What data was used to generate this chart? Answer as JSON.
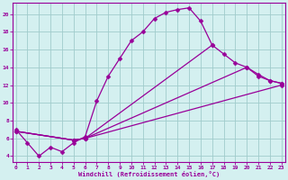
{
  "bg_color": "#d4f0f0",
  "grid_color": "#a0cccc",
  "line_color": "#990099",
  "xlabel": "Windchill (Refroidissement éolien,°C)",
  "x_ticks": [
    0,
    1,
    2,
    3,
    4,
    5,
    6,
    7,
    8,
    9,
    10,
    11,
    12,
    13,
    14,
    15,
    16,
    17,
    18,
    19,
    20,
    21,
    22,
    23
  ],
  "y_ticks": [
    4,
    6,
    8,
    10,
    12,
    14,
    16,
    18,
    20
  ],
  "xlim": [
    -0.3,
    23.3
  ],
  "ylim": [
    3.3,
    21.3
  ],
  "curve1_x": [
    0,
    1,
    2,
    3,
    4,
    5,
    6,
    7,
    8,
    9,
    10,
    11,
    12,
    13,
    14,
    15,
    16,
    17
  ],
  "curve1_y": [
    7.0,
    5.5,
    4.0,
    5.0,
    4.5,
    5.5,
    6.2,
    10.2,
    13.0,
    15.0,
    17.0,
    18.0,
    19.5,
    20.2,
    20.5,
    20.7,
    19.2,
    16.5
  ],
  "curve2_x": [
    0,
    5,
    6,
    17,
    18,
    19,
    20,
    21,
    22,
    23
  ],
  "curve2_y": [
    6.8,
    5.8,
    6.0,
    16.5,
    15.5,
    14.5,
    14.0,
    13.2,
    12.5,
    12.2
  ],
  "curve3_x": [
    0,
    5,
    6,
    20,
    21,
    22,
    23
  ],
  "curve3_y": [
    6.8,
    5.8,
    6.0,
    14.0,
    13.0,
    12.5,
    12.2
  ],
  "curve4_x": [
    0,
    5,
    6,
    23
  ],
  "curve4_y": [
    6.8,
    5.8,
    6.0,
    12.0
  ]
}
